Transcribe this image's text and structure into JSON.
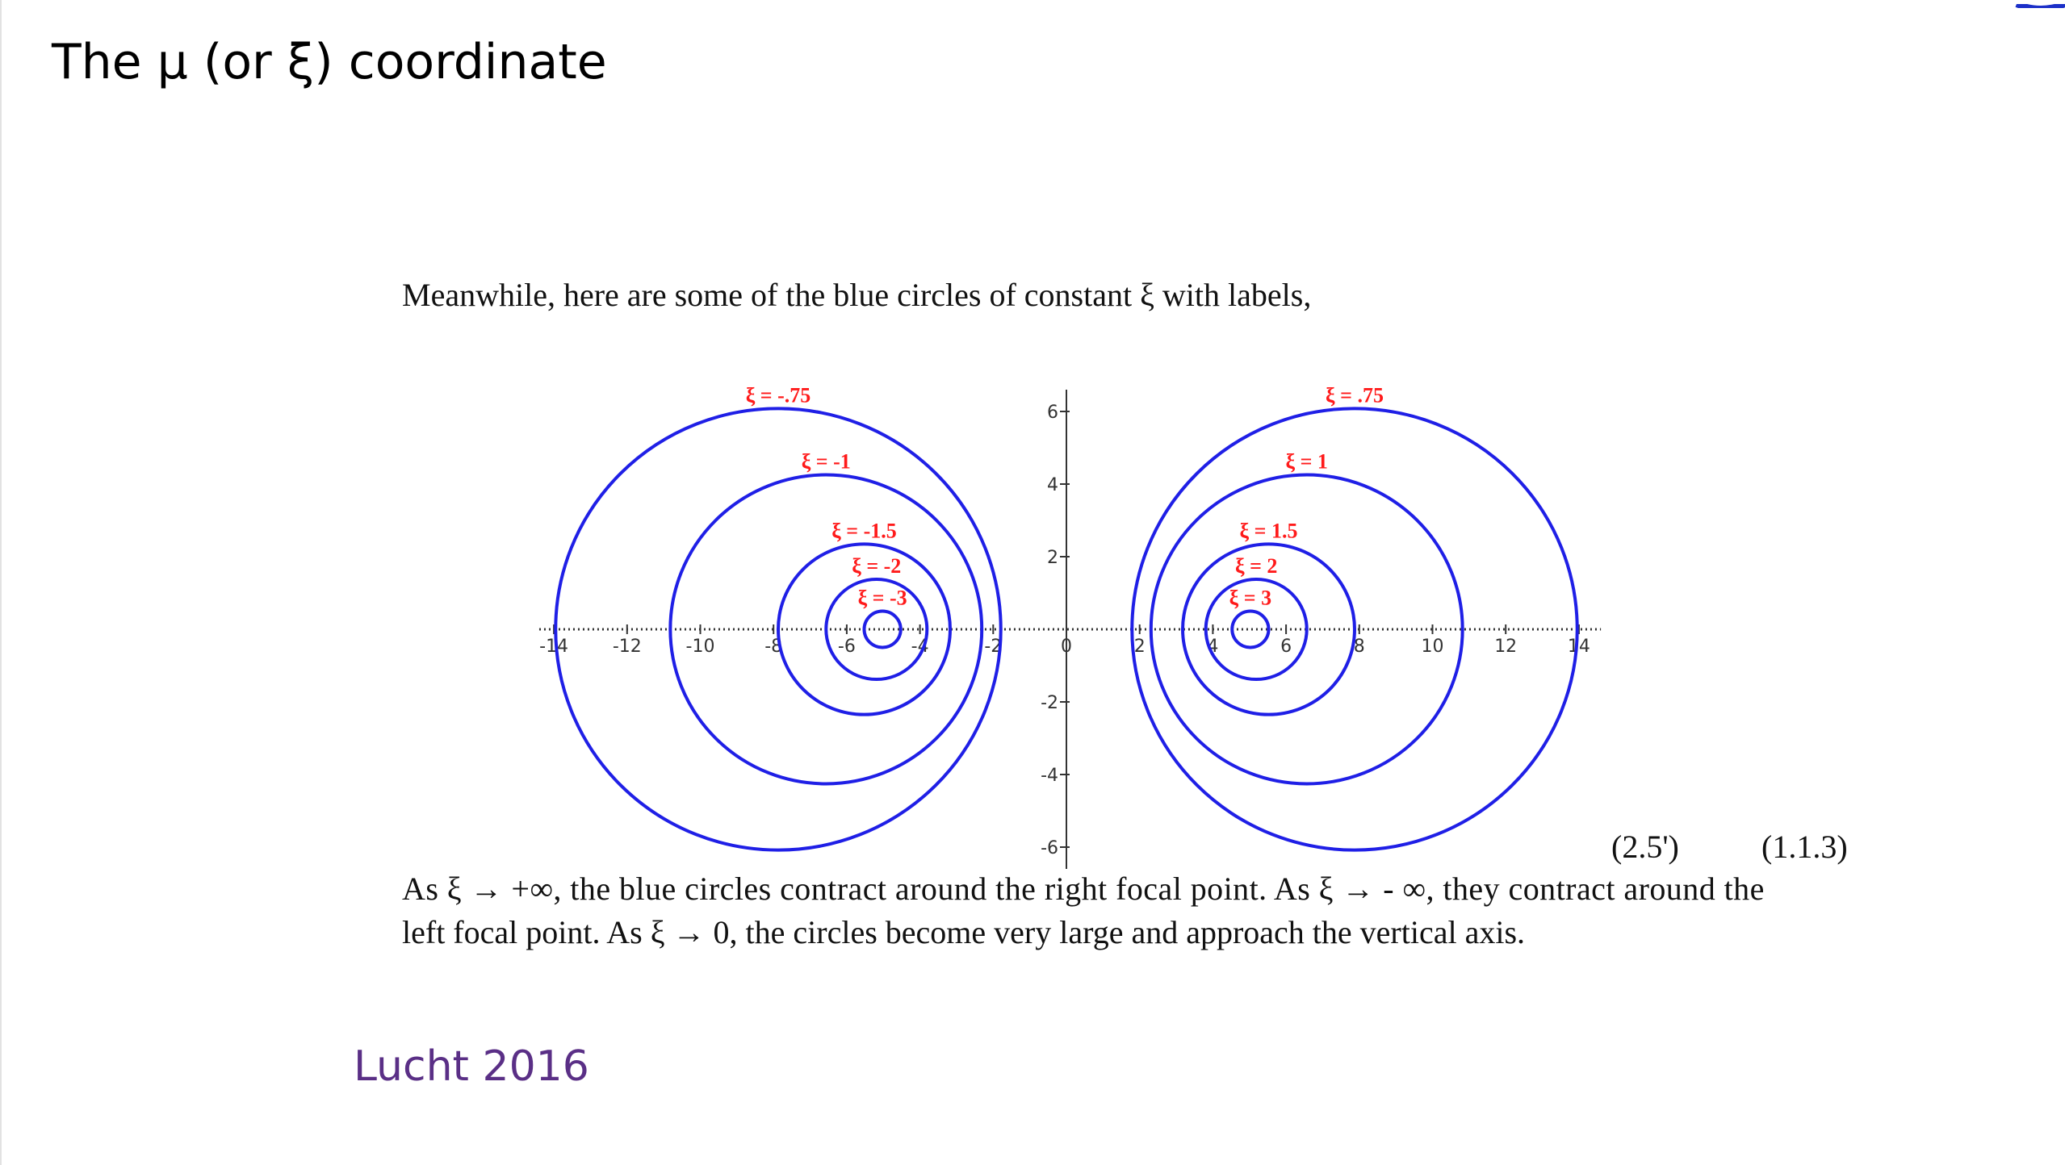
{
  "slide": {
    "title": "The μ (or ξ) coordinate",
    "intro": "Meanwhile, here are some of the blue circles of constant ξ with labels,",
    "equation_number_left": "(2.5')",
    "equation_number_right": "(1.1.3)",
    "paragraph_line1": "As ξ → +∞, the blue circles contract around the right focal point. As ξ → - ∞, they contract around the",
    "paragraph_line2": "left focal point. As ξ → 0, the circles become very large and approach the vertical axis.",
    "credit": "Lucht 2016"
  },
  "colors": {
    "circle": "#1f1fe6",
    "label": "#ff1a1a",
    "credit": "#5a2f86",
    "axis": "#333333"
  },
  "figure": {
    "focus": 5,
    "x_ticks": [
      "-14",
      "-12",
      "-10",
      "-8",
      "-6",
      "-4",
      "-2",
      "0",
      "2",
      "4",
      "6",
      "8",
      "10",
      "12",
      "14"
    ],
    "x_tick_values": [
      -14,
      -12,
      -10,
      -8,
      -6,
      -4,
      -2,
      0,
      2,
      4,
      6,
      8,
      10,
      12,
      14
    ],
    "y_ticks": [
      "6",
      "4",
      "2",
      "0",
      "-2",
      "-4",
      "-6"
    ],
    "y_tick_values": [
      6,
      4,
      2,
      0,
      -2,
      -4,
      -6
    ],
    "circles": [
      {
        "xi": -0.75,
        "label": "ξ = -.75"
      },
      {
        "xi": -1,
        "label": "ξ = -1"
      },
      {
        "xi": -1.5,
        "label": "ξ = -1.5"
      },
      {
        "xi": -2,
        "label": "ξ = -2"
      },
      {
        "xi": -3,
        "label": "ξ = -3"
      },
      {
        "xi": 0.75,
        "label": "ξ = .75"
      },
      {
        "xi": 1,
        "label": "ξ = 1"
      },
      {
        "xi": 1.5,
        "label": "ξ = 1.5"
      },
      {
        "xi": 2,
        "label": "ξ = 2"
      },
      {
        "xi": 3,
        "label": "ξ = 3"
      }
    ]
  }
}
